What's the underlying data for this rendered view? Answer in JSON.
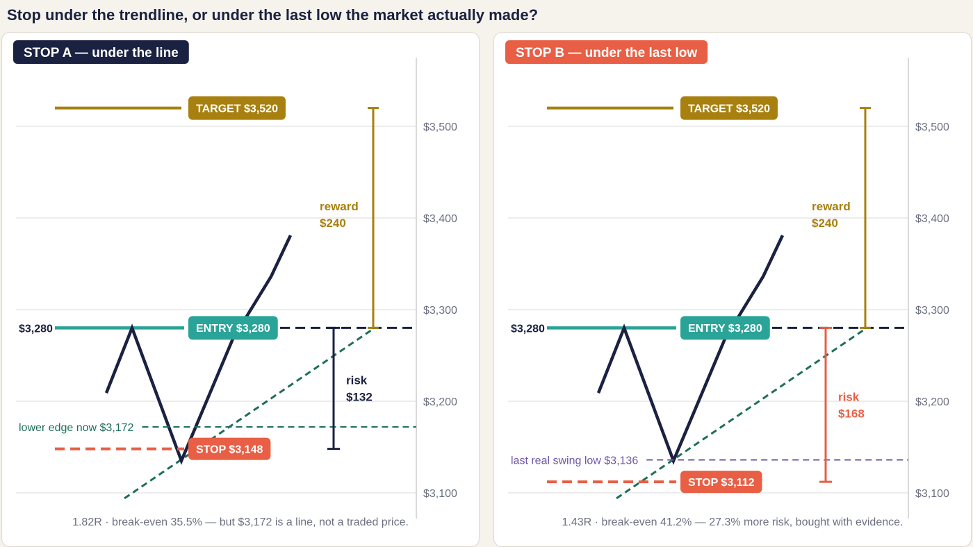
{
  "headline": "Stop under the trendline, or under the last low the market actually made?",
  "colors": {
    "navy": "#1b2140",
    "teal": "#2aa398",
    "gold": "#a8800f",
    "red": "#e85f45",
    "trendline": "#1e6e5a",
    "purple": "#6f57a7",
    "grid": "#e6e6e6",
    "axis_text": "#6b7080"
  },
  "chart_data": [
    {
      "type": "line",
      "panel_label": "STOP A — under the line",
      "badge_color": "#1b2140",
      "y_ticks": [
        3100,
        3200,
        3300,
        3400,
        3500
      ],
      "y_tick_labels": [
        "$3,100",
        "$3,200",
        "$3,300",
        "$3,400",
        "$3,500"
      ],
      "ylim": [
        3088,
        3572
      ],
      "price_path": [
        3209,
        3280,
        3135,
        3268,
        3336,
        3381
      ],
      "trendline": {
        "from": 3094,
        "to": 3280
      },
      "levels": {
        "target": {
          "value": 3520,
          "label": "TARGET $3,520"
        },
        "entry": {
          "value": 3280,
          "label": "ENTRY $3,280",
          "left_label": "$3,280"
        },
        "stop": {
          "value": 3148,
          "label": "STOP $3,148"
        },
        "reference": {
          "value": 3172,
          "label": "lower edge now $3,172",
          "color": "#1e6e5a"
        }
      },
      "reward": {
        "line1": "reward",
        "line2": "$240"
      },
      "risk": {
        "line1": "risk",
        "line2": "$132",
        "color": "#1b2140"
      },
      "footer": "1.82R · break-even 35.5% — but $3,172 is a line, not a traded price."
    },
    {
      "type": "line",
      "panel_label": "STOP B — under the last low",
      "badge_color": "#e85f45",
      "y_ticks": [
        3100,
        3200,
        3300,
        3400,
        3500
      ],
      "y_tick_labels": [
        "$3,100",
        "$3,200",
        "$3,300",
        "$3,400",
        "$3,500"
      ],
      "ylim": [
        3088,
        3572
      ],
      "price_path": [
        3209,
        3280,
        3135,
        3268,
        3336,
        3381
      ],
      "trendline": {
        "from": 3094,
        "to": 3280
      },
      "levels": {
        "target": {
          "value": 3520,
          "label": "TARGET $3,520"
        },
        "entry": {
          "value": 3280,
          "label": "ENTRY $3,280",
          "left_label": "$3,280"
        },
        "stop": {
          "value": 3112,
          "label": "STOP $3,112"
        },
        "reference": {
          "value": 3136,
          "label": "last real swing low $3,136",
          "color": "#6f57a7"
        }
      },
      "reward": {
        "line1": "reward",
        "line2": "$240"
      },
      "risk": {
        "line1": "risk",
        "line2": "$168",
        "color": "#e85f45"
      },
      "footer": "1.43R · break-even 41.2% — 27.3% more risk, bought with evidence."
    }
  ]
}
